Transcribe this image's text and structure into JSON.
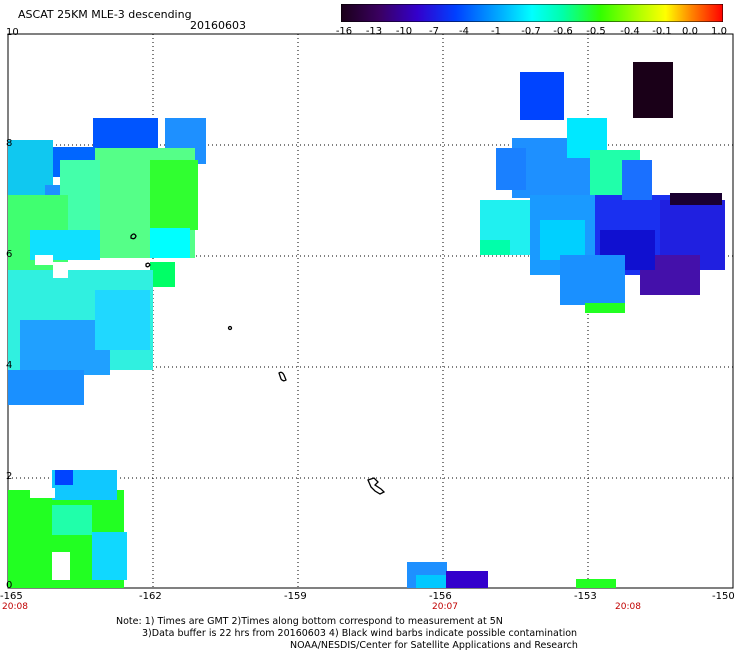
{
  "header": {
    "title": "ASCAT 25KM MLE-3 descending",
    "date": "20160603"
  },
  "colorbar": {
    "labels": [
      "-16",
      "-13",
      "-10",
      "-7",
      "-4",
      "-1",
      "-0.7",
      "-0.6",
      "-0.5",
      "-0.4",
      "-0.1",
      "0.0",
      "1.0"
    ],
    "colors": [
      "#1a0010",
      "#4b0070",
      "#2000d0",
      "#0060ff",
      "#00c0ff",
      "#00ffd0",
      "#40ff60",
      "#60ff00",
      "#b0ff00",
      "#ffff00",
      "#ffb000",
      "#ff5000",
      "#ff0000"
    ]
  },
  "axes": {
    "y_labels": [
      "10",
      "8",
      "6",
      "4",
      "2",
      "0"
    ],
    "x_labels": [
      "-165",
      "-162",
      "-159",
      "-156",
      "-153",
      "-150"
    ],
    "time_labels": [
      "20:08",
      "20:07",
      "20:08"
    ]
  },
  "notes": {
    "line1": "Note: 1) Times are GMT 2)Times along bottom correspond to measurement at 5N",
    "line2": "3)Data buffer is 22 hrs from 20160603 4) Black wind barbs indicate possible contamination",
    "line3": "NOAA/NESDIS/Center for Satellite Applications and Research"
  }
}
